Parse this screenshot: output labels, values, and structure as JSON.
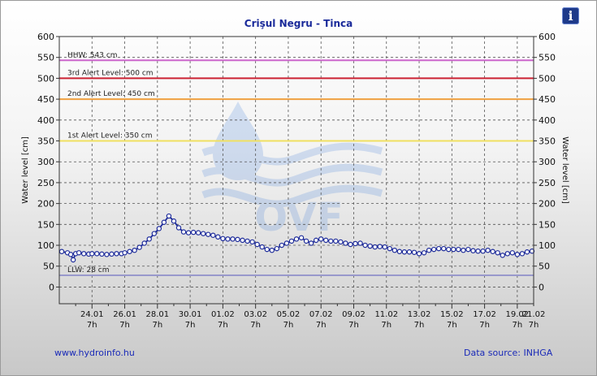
{
  "header": {
    "title": "Crişul Negru - Tinca"
  },
  "info_button": {
    "label": "i",
    "icon": "info-icon",
    "color": "#1e3a8a"
  },
  "footer": {
    "website": "www.hydroinfo.hu",
    "source": "Data source: INHGA"
  },
  "watermark": {
    "text": "OVF"
  },
  "chart_data": {
    "type": "line",
    "ylabel": "Water level [cm]",
    "ylim": [
      -40,
      600
    ],
    "yticks": [
      0,
      50,
      100,
      150,
      200,
      250,
      300,
      350,
      400,
      450,
      500,
      550,
      600
    ],
    "xlim": [
      -1.0,
      28.0
    ],
    "x_day_ticks": [
      1,
      3,
      5,
      7,
      9,
      11,
      13,
      15,
      17,
      19,
      21,
      23,
      25,
      27
    ],
    "x_minor_days": [
      0,
      2,
      4,
      6,
      8,
      10,
      12,
      14,
      16,
      18,
      20,
      22,
      24,
      26,
      28
    ],
    "xticklabels": [
      "24.01",
      "26.01",
      "28.01",
      "30.01",
      "01.02",
      "03.02",
      "05.02",
      "07.02",
      "09.02",
      "11.02",
      "13.02",
      "15.02",
      "17.02",
      "19.02",
      "21.02"
    ],
    "xticksublabel": "7h",
    "grid": true,
    "series_color": "#1c2a9a",
    "thresholds": [
      {
        "label": "HHW: 543 cm",
        "value": 543,
        "color": "#cc66cc"
      },
      {
        "label": "3rd Alert Level: 500 cm",
        "value": 500,
        "color": "#cc2233"
      },
      {
        "label": "2nd Alert Level: 450 cm",
        "value": 450,
        "color": "#f0a040"
      },
      {
        "label": "1st Alert Level: 350 cm",
        "value": 350,
        "color": "#f0e060"
      },
      {
        "label": "LLW: 28 cm",
        "value": 28,
        "color": "#9999cc"
      }
    ],
    "series": [
      {
        "x": [
          -0.85,
          -0.5,
          -0.3,
          -0.15,
          0.0,
          0.2,
          0.5,
          0.8,
          1.0,
          1.3,
          1.6,
          1.9,
          2.2,
          2.5,
          2.8,
          3.0,
          3.3,
          3.6,
          3.9,
          4.2,
          4.5,
          4.8,
          5.1,
          5.4,
          5.7,
          6.0,
          6.3,
          6.6,
          6.9,
          7.2,
          7.5,
          7.8,
          8.1,
          8.4,
          8.7,
          9.0,
          9.3,
          9.6,
          9.9,
          10.2,
          10.5,
          10.8,
          11.1,
          11.4,
          11.7,
          12.0,
          12.3,
          12.6,
          12.9,
          13.2,
          13.5,
          13.8,
          14.1,
          14.4,
          14.7,
          15.0,
          15.3,
          15.6,
          15.9,
          16.2,
          16.5,
          16.8,
          17.1,
          17.4,
          17.7,
          18.0,
          18.3,
          18.6,
          18.9,
          19.2,
          19.5,
          19.8,
          20.1,
          20.4,
          20.7,
          21.0,
          21.3,
          21.6,
          21.9,
          22.2,
          22.5,
          22.8,
          23.1,
          23.4,
          23.7,
          24.0,
          24.3,
          24.6,
          24.9,
          25.2,
          25.5,
          25.8,
          26.1,
          26.4,
          26.7,
          27.0,
          27.3,
          27.6,
          27.9
        ],
        "y": [
          85,
          82,
          78,
          65,
          80,
          82,
          80,
          79,
          80,
          80,
          79,
          78,
          79,
          80,
          80,
          82,
          85,
          88,
          95,
          105,
          115,
          128,
          140,
          155,
          170,
          158,
          142,
          132,
          130,
          131,
          130,
          128,
          126,
          124,
          120,
          116,
          115,
          115,
          114,
          112,
          110,
          108,
          102,
          96,
          90,
          88,
          92,
          100,
          105,
          110,
          115,
          118,
          110,
          105,
          112,
          115,
          112,
          110,
          110,
          108,
          105,
          102,
          104,
          105,
          100,
          98,
          96,
          97,
          96,
          92,
          88,
          85,
          84,
          84,
          83,
          80,
          82,
          88,
          90,
          92,
          92,
          90,
          90,
          90,
          88,
          90,
          87,
          86,
          86,
          88,
          85,
          82,
          76,
          80,
          82,
          78,
          80,
          84,
          86
        ]
      }
    ]
  }
}
